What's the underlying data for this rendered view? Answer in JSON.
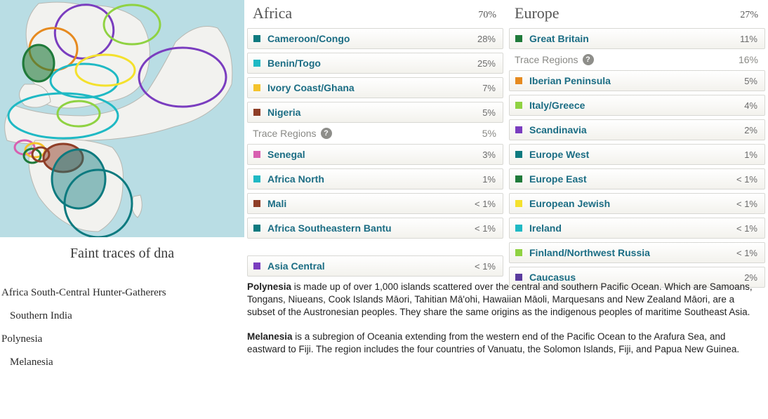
{
  "map": {
    "bg": "#b9dde4",
    "land_fill": "#f2f2ef",
    "land_stroke": "#b8b8b2"
  },
  "faint": {
    "title": "Faint traces of dna",
    "items": [
      "Africa South-Central Hunter-Gatherers",
      "Southern India",
      "Polynesia",
      "Melanesia"
    ]
  },
  "africa": {
    "title": "Africa",
    "pct": "70%",
    "rows": [
      {
        "label": "Cameroon/Congo",
        "value": "28%",
        "color": "#0d7a7f"
      },
      {
        "label": "Benin/Togo",
        "value": "25%",
        "color": "#1fb9c4"
      },
      {
        "label": "Ivory Coast/Ghana",
        "value": "7%",
        "color": "#f4c32c"
      },
      {
        "label": "Nigeria",
        "value": "5%",
        "color": "#8f3e27"
      }
    ],
    "trace_label": "Trace Regions",
    "trace_pct": "5%",
    "trace_rows": [
      {
        "label": "Senegal",
        "value": "3%",
        "color": "#d85fb0"
      },
      {
        "label": "Africa North",
        "value": "1%",
        "color": "#1fb9c4"
      },
      {
        "label": "Mali",
        "value": "< 1%",
        "color": "#8f3e27"
      },
      {
        "label": "Africa Southeastern Bantu",
        "value": "< 1%",
        "color": "#0d7a7f"
      }
    ],
    "extra": {
      "label": "Asia Central",
      "value": "< 1%",
      "color": "#7a3dbf"
    }
  },
  "europe": {
    "title": "Europe",
    "pct": "27%",
    "rows": [
      {
        "label": "Great Britain",
        "value": "11%",
        "color": "#1f7a3a"
      }
    ],
    "trace_label": "Trace Regions",
    "trace_pct": "16%",
    "trace_rows": [
      {
        "label": "Iberian Peninsula",
        "value": "5%",
        "color": "#e68a1f"
      },
      {
        "label": "Italy/Greece",
        "value": "4%",
        "color": "#8fd242"
      },
      {
        "label": "Scandinavia",
        "value": "2%",
        "color": "#7a3dbf"
      },
      {
        "label": "Europe West",
        "value": "1%",
        "color": "#0d7a7f"
      },
      {
        "label": "Europe East",
        "value": "< 1%",
        "color": "#1f7a3a"
      },
      {
        "label": "European Jewish",
        "value": "< 1%",
        "color": "#f4e12c"
      },
      {
        "label": "Ireland",
        "value": "< 1%",
        "color": "#1fb9c4"
      },
      {
        "label": "Finland/Northwest Russia",
        "value": "< 1%",
        "color": "#8fd242"
      },
      {
        "label": "Caucasus",
        "value": "2%",
        "color": "#5a3b9e"
      }
    ]
  },
  "desc": {
    "polynesia_strong": "Polynesia",
    "polynesia_rest": " is made up of over 1,000 islands scattered over the central and southern Pacific Ocean. Which are Samoans, Tongans, Niueans, Cook Islands Māori, Tahitian Mā'ohi, Hawaiian Māoli, Marquesans and New Zealand Māori, are a subset of the Austronesian peoples. They share the same origins as the indigenous peoples of maritime Southeast Asia.",
    "melanesia_strong": "Melanesia",
    "melanesia_rest": " is a subregion of Oceania extending from the western end of the Pacific Ocean to the Arafura Sea, and eastward to Fiji. The region includes the four countries of Vanuatu, the Solomon Islands, Fiji, and Papua New Guinea."
  },
  "colors": {
    "link": "#1b6d84",
    "muted": "#8a8a86"
  }
}
